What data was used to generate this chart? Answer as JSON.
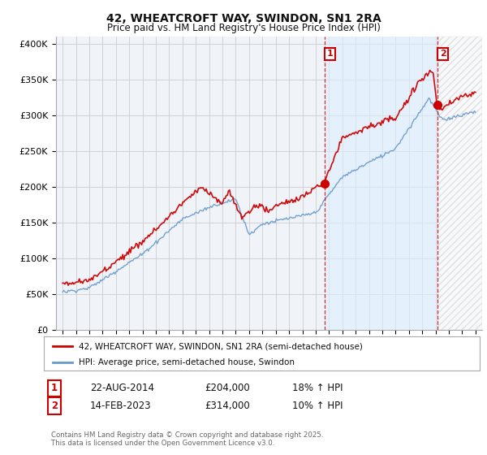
{
  "title1": "42, WHEATCROFT WAY, SWINDON, SN1 2RA",
  "title2": "Price paid vs. HM Land Registry's House Price Index (HPI)",
  "ylabel_ticks": [
    "£0",
    "£50K",
    "£100K",
    "£150K",
    "£200K",
    "£250K",
    "£300K",
    "£350K",
    "£400K"
  ],
  "ytick_vals": [
    0,
    50000,
    100000,
    150000,
    200000,
    250000,
    300000,
    350000,
    400000
  ],
  "ylim": [
    0,
    410000
  ],
  "xlim_start": 1994.5,
  "xlim_end": 2026.5,
  "red_color": "#cc0000",
  "blue_color": "#6699cc",
  "marker1_x": 2014.65,
  "marker1_y": 204000,
  "marker2_x": 2023.12,
  "marker2_y": 314000,
  "vline1_x": 2014.65,
  "vline2_x": 2023.12,
  "shade_color": "#ddeeff",
  "hatch_color": "#cccccc",
  "legend_label_red": "42, WHEATCROFT WAY, SWINDON, SN1 2RA (semi-detached house)",
  "legend_label_blue": "HPI: Average price, semi-detached house, Swindon",
  "annot1_label": "1",
  "annot2_label": "2",
  "table_row1": [
    "1",
    "22-AUG-2014",
    "£204,000",
    "18% ↑ HPI"
  ],
  "table_row2": [
    "2",
    "14-FEB-2023",
    "£314,000",
    "10% ↑ HPI"
  ],
  "footer": "Contains HM Land Registry data © Crown copyright and database right 2025.\nThis data is licensed under the Open Government Licence v3.0.",
  "bg_color": "#ffffff",
  "grid_color": "#cccccc",
  "plot_bg": "#f0f4f8"
}
